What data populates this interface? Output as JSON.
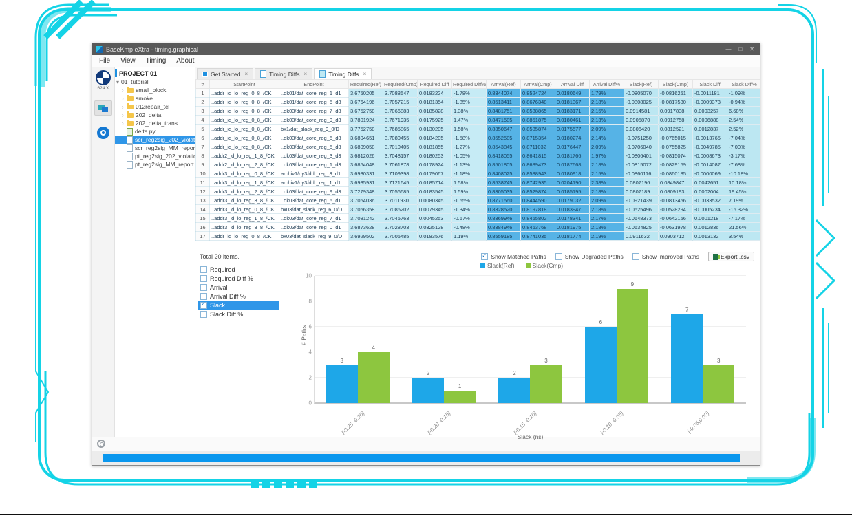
{
  "frame": {
    "accent_color": "#14d3e6",
    "bottom_line_color": "#111111"
  },
  "window": {
    "title": "BaseKmp eXtra - timing.graphical",
    "menu": [
      "File",
      "View",
      "Timing",
      "About"
    ],
    "controls": {
      "minimize": "—",
      "maximize": "□",
      "close": "✕"
    }
  },
  "left_rail": {
    "logo_caption": "624.X"
  },
  "project_panel": {
    "header": "PROJECT 01",
    "root_label": "01_tutorial",
    "items": [
      {
        "label": "small_block",
        "icon": "folder"
      },
      {
        "label": "smoke",
        "icon": "folder"
      },
      {
        "label": "012repair_tcl",
        "icon": "folder"
      },
      {
        "label": "202_delta",
        "icon": "folder"
      },
      {
        "label": "202_delta_trans",
        "icon": "folder"
      },
      {
        "label": "delta.py",
        "icon": "py"
      },
      {
        "label": "scr_reg2sig_202_violatio",
        "icon": "file",
        "selected": true
      },
      {
        "label": "scr_reg2sig_MM_report",
        "icon": "file"
      },
      {
        "label": "pt_reg2sig_202_violation",
        "icon": "file"
      },
      {
        "label": "pt_reg2sig_MM_report",
        "icon": "file"
      }
    ]
  },
  "tabs": [
    {
      "label": "Get Started",
      "icon": "grid-icon",
      "active": false,
      "close": "×"
    },
    {
      "label": "Timing Diffs",
      "icon": "document-icon",
      "active": false,
      "close": "×"
    },
    {
      "label": "Timing Diffs",
      "icon": "document-icon-teal",
      "active": true,
      "close": "×"
    }
  ],
  "table": {
    "columns": [
      "#",
      "StartPoint",
      "EndPoint",
      "Required(Ref)",
      "Required(Cmp)",
      "Required Diff",
      "Required Diff%",
      "Arrival(Ref)",
      "Arrival(Cmp)",
      "Arrival Diff",
      "Arrival Diff%",
      "Slack(Ref)",
      "Slack(Cmp)",
      "Slack Diff",
      "Slack Diff%"
    ],
    "rows": [
      [
        "1",
        "..addr_id_lo_reg_0_8_/CK",
        "..dk01/dat_core_reg_1_d1",
        "3.6750205",
        "3.7088547",
        "0.0183224",
        "-1.78%",
        "0.8344074",
        "0.8524724",
        "0.0180649",
        "1.79%",
        "-0.0805070",
        "-0.0816251",
        "-0.0011181",
        "-1.09%"
      ],
      [
        "2",
        "..addr_id_lo_reg_0_8_/CK",
        "..dk01/dat_core_reg_5_d3",
        "3.6764196",
        "3.7057215",
        "0.0181354",
        "-1.85%",
        "0.8513411",
        "0.8676348",
        "0.0181367",
        "2.18%",
        "-0.0808025",
        "-0.0817530",
        "-0.0009373",
        "-0.94%"
      ],
      [
        "3",
        "..addr_id_lo_reg_0_8_/CK",
        "..dk03/dat_core_reg_7_d3",
        "3.6752758",
        "3.7066883",
        "0.0185828",
        "1.38%",
        "0.8481751",
        "0.8588865",
        "0.0183171",
        "2.15%",
        "0.0914581",
        "0.0917838",
        "0.0003257",
        "6.68%"
      ],
      [
        "4",
        "..addr_id_lo_reg_0_8_/CK",
        "..dk03/dat_core_reg_9_d3",
        "3.7801924",
        "3.7671935",
        "0.0175925",
        "1.47%",
        "0.8471585",
        "0.8851875",
        "0.0180461",
        "2.13%",
        "0.0905870",
        "0.0912758",
        "0.0006888",
        "2.54%"
      ],
      [
        "5",
        "..addr_id_lo_reg_0_8_/CK",
        "bx1/dat_slack_reg_9_0/D",
        "3.7752758",
        "3.7685865",
        "0.0130205",
        "1.58%",
        "0.8350647",
        "0.8585874",
        "0.0175577",
        "2.09%",
        "0.0806420",
        "0.0812521",
        "0.0012837",
        "2.52%"
      ],
      [
        "6",
        "..addr_id_lo_reg_0_8_/CK",
        "..dk03/dat_core_reg_5_d3",
        "3.6804651",
        "3.7080455",
        "0.0184205",
        "-1.58%",
        "0.8552585",
        "0.8715354",
        "0.0180274",
        "2.14%",
        "-0.0751250",
        "-0.0765015",
        "-0.0013765",
        "-7.04%"
      ],
      [
        "7",
        "..addr_id_lo_reg_0_8_/CK",
        "..dk03/dat_core_reg_5_d3",
        "3.6809058",
        "3.7010405",
        "0.0181855",
        "-1.27%",
        "0.8543845",
        "0.8711032",
        "0.0176447",
        "2.09%",
        "-0.0706040",
        "-0.0755825",
        "-0.0049785",
        "-7.00%"
      ],
      [
        "8",
        "..addr2_id_lo_reg_1_8_/CK",
        "..dk03/dat_core_reg_3_d3",
        "3.6812026",
        "3.7048157",
        "0.0180253",
        "-1.05%",
        "0.8418055",
        "0.8641815",
        "0.0181766",
        "1.97%",
        "-0.0806401",
        "-0.0815074",
        "-0.0008673",
        "-3.17%"
      ],
      [
        "9",
        "..addr2_id_lo_reg_2_8_/CK",
        "..dk03/dat_core_reg_1_d3",
        "3.6854048",
        "3.7061878",
        "0.0178924",
        "-1.13%",
        "0.8501805",
        "0.8689473",
        "0.0187668",
        "2.18%",
        "-0.0815072",
        "-0.0829159",
        "-0.0014087",
        "-7.68%"
      ],
      [
        "10",
        "..addr3_id_lo_reg_0_8_/CK",
        "archiv1/dy3/ddr_reg_3_d1",
        "3.6930331",
        "3.7109398",
        "0.0179067",
        "-1.18%",
        "0.8408025",
        "0.8588943",
        "0.0180918",
        "2.15%",
        "-0.0860116",
        "-0.0860185",
        "-0.0000069",
        "-10.18%"
      ],
      [
        "11",
        "..addr3_id_lo_reg_1_8_/CK",
        "archiv1/dy3/ddr_reg_1_d1",
        "3.6935931",
        "3.7121645",
        "0.0185714",
        "1.58%",
        "0.8538745",
        "0.8742935",
        "0.0204190",
        "2.38%",
        "0.0807196",
        "0.0849847",
        "0.0042651",
        "10.18%"
      ],
      [
        "12",
        "..addr3_id_lo_reg_2_8_/CK",
        "..dk03/dat_core_reg_9_d3",
        "3.7279348",
        "3.7056685",
        "0.0183545",
        "1.59%",
        "0.8305035",
        "0.8529874",
        "0.0185195",
        "2.18%",
        "0.0807189",
        "0.0809193",
        "0.0002004",
        "19.45%"
      ],
      [
        "13",
        "..addr3_id_lo_reg_3_8_/CK",
        "..dk03/dat_core_reg_5_d1",
        "3.7054036",
        "3.7011930",
        "0.0080345",
        "-1.55%",
        "0.8771560",
        "0.8444590",
        "0.0179032",
        "2.09%",
        "-0.0921439",
        "-0.0813456",
        "-0.0033532",
        "7.19%"
      ],
      [
        "14",
        "..addr3_id_lo_reg_0_8_/CK",
        "bx03/dat_slack_reg_6_0/D",
        "3.7056358",
        "3.7086202",
        "0.0079345",
        "-1.34%",
        "0.8328520",
        "0.8197818",
        "0.0183947",
        "2.18%",
        "-0.0525496",
        "-0.0528294",
        "-0.0005234",
        "-16.32%"
      ],
      [
        "15",
        "..addr3_id_lo_reg_1_8_/CK",
        "..dk03/dat_core_reg_7_d1",
        "3.7081242",
        "3.7045763",
        "0.0045253",
        "-0.67%",
        "0.8369946",
        "0.8465802",
        "0.0178341",
        "2.17%",
        "-0.0648373",
        "-0.0642156",
        "0.0001218",
        "-7.17%"
      ],
      [
        "16",
        "..addr3_id_lo_reg_3_8_/CK",
        "..dk03/dat_core_reg_0_d1",
        "3.6873628",
        "3.7028703",
        "0.0325128",
        "-0.48%",
        "0.8384946",
        "0.8463768",
        "0.0181975",
        "2.18%",
        "-0.0634825",
        "-0.0631978",
        "0.0012836",
        "21.56%"
      ],
      [
        "17",
        "..addr_id_lo_reg_0_8_/CK",
        "bx03/dat_slack_reg_9_0/D",
        "3.6929502",
        "3.7005485",
        "0.0183576",
        "1.19%",
        "0.8559185",
        "0.8741035",
        "0.0181774",
        "2.19%",
        "0.0911632",
        "0.0903712",
        "0.0013132",
        "3.54%"
      ]
    ]
  },
  "bottom_panel": {
    "total_label": "Total 20 items.",
    "column_options": [
      {
        "label": "Required",
        "checked": false,
        "selected": false
      },
      {
        "label": "Required Diff %",
        "checked": false,
        "selected": false
      },
      {
        "label": "Arrival",
        "checked": false,
        "selected": false
      },
      {
        "label": "Arrival Diff %",
        "checked": false,
        "selected": false
      },
      {
        "label": "Slack",
        "checked": true,
        "selected": true
      },
      {
        "label": "Slack Diff %",
        "checked": false,
        "selected": false
      }
    ],
    "filters": [
      {
        "label": "Show Matched Paths",
        "checked": true
      },
      {
        "label": "Show Degraded Paths",
        "checked": false
      },
      {
        "label": "Show Improved Paths",
        "checked": false
      }
    ],
    "export_label": "Export .csv"
  },
  "chart_data": {
    "type": "bar",
    "title": "",
    "categories": [
      "[-0.25,-0.20)",
      "[-0.20,-0.15)",
      "[-0.15,-0.10)",
      "[-0.10,-0.05)",
      "[-0.05,0.00)"
    ],
    "series": [
      {
        "name": "Slack(Ref)",
        "color": "#1ea7e8",
        "values": [
          3,
          2,
          2,
          6,
          7
        ]
      },
      {
        "name": "Slack(Cmp)",
        "color": "#8dc63f",
        "values": [
          4,
          1,
          3,
          9,
          3
        ]
      }
    ],
    "xlabel": "Slack (ns)",
    "ylabel": "# Paths",
    "ylim": [
      0,
      10
    ],
    "yticks": [
      0,
      2,
      4,
      6,
      8,
      10
    ],
    "grid": true,
    "legend_position": "top"
  },
  "status_bar": {
    "progress_percent": 97
  }
}
